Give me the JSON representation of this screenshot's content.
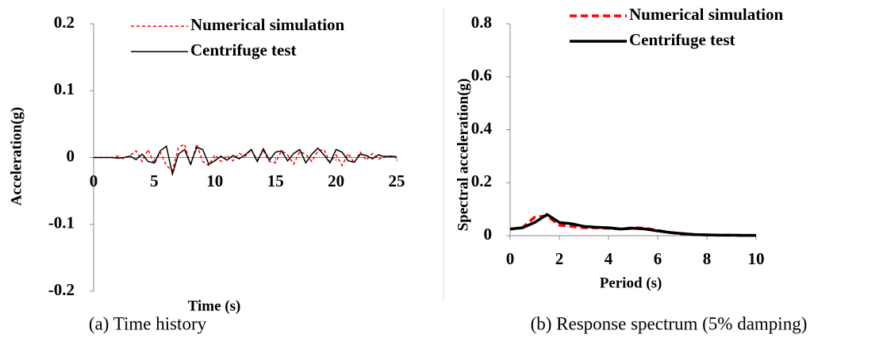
{
  "chart_data": [
    {
      "type": "line",
      "caption": "(a) Time history",
      "xlabel": "Time (s)",
      "ylabel": "Acceleration(g)",
      "x": [
        0,
        0.5,
        1,
        1.5,
        2,
        2.5,
        3,
        3.5,
        4,
        4.5,
        5,
        5.5,
        6,
        6.5,
        7,
        7.5,
        8,
        8.5,
        9,
        9.5,
        10,
        10.5,
        11,
        11.5,
        12,
        12.5,
        13,
        13.5,
        14,
        14.5,
        15,
        15.5,
        16,
        16.5,
        17,
        17.5,
        18,
        18.5,
        19,
        19.5,
        20,
        20.5,
        21,
        21.5,
        22,
        22.5,
        23,
        23.5,
        24,
        24.5,
        25
      ],
      "series": [
        {
          "name": "Numerical simulation",
          "color": "#ff0000",
          "dashed": true,
          "values": [
            0,
            0,
            0,
            0,
            0.002,
            -0.002,
            0.003,
            0.01,
            -0.006,
            0.012,
            -0.01,
            0.008,
            -0.012,
            -0.02,
            0.015,
            0.02,
            -0.012,
            0.02,
            -0.006,
            -0.012,
            0.004,
            -0.006,
            0.003,
            -0.005,
            0.006,
            0.002,
            0.012,
            -0.004,
            0.01,
            -0.006,
            -0.008,
            0.01,
            0.004,
            -0.01,
            0.009,
            0.005,
            -0.006,
            0.01,
            0.012,
            -0.007,
            0.004,
            -0.012,
            0.006,
            -0.008,
            0.008,
            -0.004,
            0.006,
            -0.003,
            0.002,
            0.001,
            0
          ]
        },
        {
          "name": "Centrifuge test",
          "color": "#000000",
          "dashed": false,
          "values": [
            0,
            0,
            0,
            0,
            -0.001,
            0,
            0.002,
            -0.003,
            0.005,
            -0.006,
            -0.008,
            0.01,
            0.017,
            -0.025,
            0.005,
            0.012,
            -0.01,
            0.015,
            0.012,
            -0.01,
            -0.005,
            0.002,
            -0.004,
            0.003,
            -0.002,
            0.004,
            0.012,
            -0.006,
            0.013,
            -0.004,
            0.008,
            0.01,
            -0.005,
            0.006,
            0.012,
            -0.008,
            0.005,
            0.014,
            0.004,
            -0.008,
            0.012,
            0.008,
            -0.005,
            -0.007,
            0.005,
            0.003,
            -0.002,
            0.004,
            0.001,
            0.002,
            0.001
          ]
        }
      ],
      "xlim": [
        0,
        25
      ],
      "xticks": [
        0,
        5,
        10,
        15,
        20,
        25
      ],
      "ylim": [
        -0.2,
        0.2
      ],
      "yticks": [
        -0.2,
        -0.1,
        0,
        0.1,
        0.2
      ]
    },
    {
      "type": "line",
      "caption": "(b) Response spectrum (5% damping)",
      "xlabel": "Period (s)",
      "ylabel": "Spectral acceleration(g)",
      "x": [
        0,
        0.5,
        1,
        1.5,
        2,
        2.5,
        3,
        3.5,
        4,
        4.5,
        5,
        5.5,
        6,
        6.5,
        7,
        7.5,
        8,
        8.5,
        9,
        9.5,
        10
      ],
      "series": [
        {
          "name": "Numerical simulation",
          "color": "#ff0000",
          "dashed": true,
          "values": [
            0.025,
            0.03,
            0.07,
            0.075,
            0.04,
            0.035,
            0.03,
            0.03,
            0.028,
            0.025,
            0.03,
            0.028,
            0.02,
            0.012,
            0.006,
            0.004,
            0.003,
            0.002,
            0.002,
            0.001,
            0.001
          ]
        },
        {
          "name": "Centrifuge test",
          "color": "#000000",
          "dashed": false,
          "values": [
            0.025,
            0.03,
            0.05,
            0.08,
            0.05,
            0.045,
            0.035,
            0.032,
            0.03,
            0.025,
            0.028,
            0.025,
            0.018,
            0.012,
            0.008,
            0.004,
            0.003,
            0.002,
            0.002,
            0.001,
            0.001
          ]
        }
      ],
      "xlim": [
        0,
        10
      ],
      "xticks": [
        0,
        2,
        4,
        6,
        8,
        10
      ],
      "ylim": [
        0,
        0.8
      ],
      "yticks": [
        0,
        0.2,
        0.4,
        0.6,
        0.8
      ]
    }
  ]
}
